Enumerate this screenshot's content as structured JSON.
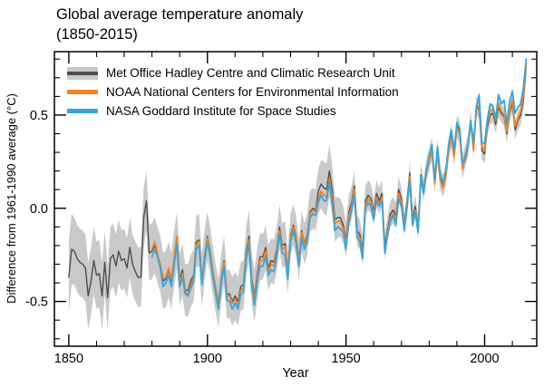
{
  "title": {
    "line1": "Global average temperature anomaly",
    "line2": "(1850-2015)"
  },
  "chart_data": {
    "type": "line",
    "title": "Global average temperature anomaly (1850-2015)",
    "xlabel": "Year",
    "ylabel": "Difference from 1961-1990 average (°C)",
    "xlim": [
      1844.8,
      2018.8
    ],
    "ylim": [
      -0.74,
      0.84
    ],
    "grid": false,
    "legend_position": "top-left-inside",
    "background_color": "#FFFFFF",
    "axis_color": "#000000",
    "text_color": "#000000",
    "x_major_ticks": [
      {
        "value": 1850,
        "label": "1850"
      },
      {
        "value": 1900,
        "label": "1900"
      },
      {
        "value": 1950,
        "label": "1950"
      },
      {
        "value": 2000,
        "label": "2000"
      }
    ],
    "x_minor_ticks": [
      1860,
      1870,
      1880,
      1890,
      1910,
      1920,
      1930,
      1940,
      1960,
      1970,
      1980,
      1990,
      2010
    ],
    "y_major_ticks": [
      {
        "value": 0.5,
        "label": "0.5"
      },
      {
        "value": 0.0,
        "label": "0.0"
      },
      {
        "value": -0.5,
        "label": "-0.5"
      }
    ],
    "y_minor_ticks": [
      0.8,
      0.7,
      0.6,
      0.4,
      0.3,
      0.2,
      0.1,
      -0.1,
      -0.2,
      -0.3,
      -0.4,
      -0.6,
      -0.7
    ],
    "series": [
      {
        "name": "met-office-hadcrut",
        "label": "Met Office Hadley Centre and Climatic Research Unit",
        "color": "#4D4D4D",
        "band_color": "#C9C9C9",
        "start_year": 1850,
        "end_year": 2015,
        "values": [
          -0.37,
          -0.22,
          -0.23,
          -0.27,
          -0.29,
          -0.3,
          -0.32,
          -0.47,
          -0.39,
          -0.28,
          -0.36,
          -0.35,
          -0.47,
          -0.29,
          -0.48,
          -0.27,
          -0.25,
          -0.31,
          -0.23,
          -0.28,
          -0.27,
          -0.32,
          -0.21,
          -0.3,
          -0.34,
          -0.37,
          -0.37,
          -0.05,
          0.04,
          -0.24,
          -0.23,
          -0.2,
          -0.25,
          -0.3,
          -0.39,
          -0.38,
          -0.33,
          -0.39,
          -0.27,
          -0.17,
          -0.38,
          -0.33,
          -0.44,
          -0.44,
          -0.39,
          -0.36,
          -0.18,
          -0.17,
          -0.39,
          -0.25,
          -0.15,
          -0.23,
          -0.34,
          -0.43,
          -0.51,
          -0.37,
          -0.28,
          -0.46,
          -0.46,
          -0.5,
          -0.47,
          -0.5,
          -0.42,
          -0.41,
          -0.23,
          -0.15,
          -0.38,
          -0.47,
          -0.35,
          -0.26,
          -0.26,
          -0.21,
          -0.32,
          -0.28,
          -0.29,
          -0.22,
          -0.1,
          -0.2,
          -0.19,
          -0.34,
          -0.14,
          -0.09,
          -0.15,
          -0.28,
          -0.12,
          -0.19,
          -0.14,
          -0.02,
          0.0,
          -0.01,
          0.09,
          0.13,
          0.11,
          0.1,
          0.2,
          0.1,
          -0.06,
          -0.05,
          -0.05,
          -0.09,
          -0.17,
          -0.02,
          0.03,
          0.12,
          -0.12,
          -0.14,
          -0.23,
          0.04,
          0.07,
          0.05,
          -0.02,
          0.08,
          0.04,
          0.08,
          -0.21,
          -0.11,
          -0.03,
          -0.01,
          -0.04,
          0.1,
          0.05,
          -0.09,
          0.03,
          0.19,
          -0.06,
          0.01,
          -0.11,
          0.18,
          0.1,
          0.21,
          0.26,
          0.32,
          0.14,
          0.31,
          0.16,
          0.12,
          0.18,
          0.32,
          0.39,
          0.29,
          0.44,
          0.41,
          0.22,
          0.28,
          0.34,
          0.47,
          0.32,
          0.55,
          0.53,
          0.31,
          0.29,
          0.44,
          0.5,
          0.51,
          0.45,
          0.54,
          0.51,
          0.49,
          0.4,
          0.51,
          0.56,
          0.42,
          0.47,
          0.5,
          0.58,
          0.76
        ],
        "uncertainty_half_width": [
          0.19,
          0.19,
          0.18,
          0.18,
          0.18,
          0.18,
          0.18,
          0.18,
          0.18,
          0.18,
          0.18,
          0.18,
          0.18,
          0.17,
          0.17,
          0.17,
          0.17,
          0.17,
          0.17,
          0.16,
          0.16,
          0.16,
          0.16,
          0.16,
          0.16,
          0.16,
          0.16,
          0.16,
          0.16,
          0.15,
          0.15,
          0.15,
          0.15,
          0.15,
          0.15,
          0.15,
          0.15,
          0.15,
          0.15,
          0.15,
          0.14,
          0.14,
          0.14,
          0.14,
          0.14,
          0.14,
          0.14,
          0.14,
          0.14,
          0.14,
          0.13,
          0.13,
          0.13,
          0.13,
          0.13,
          0.13,
          0.13,
          0.13,
          0.13,
          0.13,
          0.13,
          0.13,
          0.13,
          0.13,
          0.13,
          0.14,
          0.14,
          0.14,
          0.14,
          0.13,
          0.12,
          0.12,
          0.12,
          0.12,
          0.12,
          0.12,
          0.12,
          0.12,
          0.12,
          0.12,
          0.11,
          0.11,
          0.11,
          0.11,
          0.11,
          0.11,
          0.11,
          0.11,
          0.11,
          0.11,
          0.12,
          0.13,
          0.14,
          0.14,
          0.14,
          0.13,
          0.12,
          0.11,
          0.1,
          0.1,
          0.09,
          0.09,
          0.09,
          0.08,
          0.08,
          0.08,
          0.08,
          0.08,
          0.08,
          0.08,
          0.07,
          0.07,
          0.07,
          0.07,
          0.07,
          0.07,
          0.07,
          0.07,
          0.07,
          0.07,
          0.06,
          0.06,
          0.06,
          0.06,
          0.06,
          0.06,
          0.06,
          0.06,
          0.06,
          0.06,
          0.06,
          0.06,
          0.06,
          0.06,
          0.06,
          0.06,
          0.06,
          0.06,
          0.06,
          0.06,
          0.06,
          0.06,
          0.06,
          0.06,
          0.06,
          0.05,
          0.05,
          0.05,
          0.05,
          0.05,
          0.05,
          0.05,
          0.05,
          0.05,
          0.05,
          0.05,
          0.05,
          0.05,
          0.05,
          0.05,
          0.05,
          0.05,
          0.05,
          0.05,
          0.05,
          0.05
        ]
      },
      {
        "name": "noaa",
        "label": "NOAA National Centers for Environmental Information",
        "color": "#F5821F",
        "start_year": 1880,
        "end_year": 2015,
        "values": [
          -0.22,
          -0.18,
          -0.24,
          -0.31,
          -0.37,
          -0.37,
          -0.32,
          -0.38,
          -0.26,
          -0.15,
          -0.4,
          -0.35,
          -0.45,
          -0.46,
          -0.41,
          -0.37,
          -0.2,
          -0.18,
          -0.4,
          -0.26,
          -0.16,
          -0.24,
          -0.35,
          -0.44,
          -0.52,
          -0.38,
          -0.29,
          -0.47,
          -0.47,
          -0.51,
          -0.49,
          -0.52,
          -0.44,
          -0.43,
          -0.25,
          -0.17,
          -0.4,
          -0.49,
          -0.37,
          -0.28,
          -0.28,
          -0.23,
          -0.34,
          -0.3,
          -0.31,
          -0.24,
          -0.12,
          -0.22,
          -0.21,
          -0.36,
          -0.15,
          -0.1,
          -0.16,
          -0.29,
          -0.13,
          -0.2,
          -0.15,
          -0.03,
          -0.01,
          -0.02,
          0.05,
          0.09,
          0.07,
          0.06,
          0.16,
          0.06,
          -0.08,
          -0.07,
          -0.07,
          -0.11,
          -0.19,
          -0.04,
          0.01,
          0.1,
          -0.14,
          -0.16,
          -0.25,
          0.02,
          0.05,
          0.03,
          -0.04,
          0.06,
          0.02,
          0.06,
          -0.23,
          -0.13,
          -0.05,
          -0.03,
          -0.06,
          0.08,
          0.03,
          -0.11,
          0.01,
          0.17,
          -0.08,
          -0.01,
          -0.13,
          0.17,
          0.09,
          0.2,
          0.25,
          0.31,
          0.13,
          0.3,
          0.15,
          0.11,
          0.17,
          0.31,
          0.38,
          0.28,
          0.43,
          0.4,
          0.21,
          0.27,
          0.33,
          0.46,
          0.31,
          0.54,
          0.55,
          0.33,
          0.31,
          0.46,
          0.52,
          0.53,
          0.47,
          0.56,
          0.52,
          0.5,
          0.41,
          0.52,
          0.58,
          0.44,
          0.48,
          0.52,
          0.61,
          0.78
        ]
      },
      {
        "name": "nasa",
        "label": "NASA Goddard Institute for Space Studies",
        "color": "#36A5DC",
        "start_year": 1880,
        "end_year": 2015,
        "values": [
          -0.26,
          -0.22,
          -0.26,
          -0.32,
          -0.42,
          -0.4,
          -0.36,
          -0.42,
          -0.3,
          -0.19,
          -0.42,
          -0.37,
          -0.46,
          -0.47,
          -0.43,
          -0.39,
          -0.22,
          -0.2,
          -0.41,
          -0.28,
          -0.18,
          -0.26,
          -0.37,
          -0.46,
          -0.54,
          -0.4,
          -0.31,
          -0.49,
          -0.5,
          -0.54,
          -0.51,
          -0.54,
          -0.46,
          -0.45,
          -0.27,
          -0.19,
          -0.42,
          -0.52,
          -0.39,
          -0.31,
          -0.31,
          -0.26,
          -0.36,
          -0.33,
          -0.34,
          -0.26,
          -0.14,
          -0.24,
          -0.25,
          -0.38,
          -0.18,
          -0.12,
          -0.19,
          -0.31,
          -0.16,
          -0.22,
          -0.18,
          -0.05,
          -0.03,
          -0.04,
          0.03,
          0.07,
          0.04,
          0.04,
          0.14,
          0.02,
          -0.12,
          -0.1,
          -0.11,
          -0.13,
          -0.22,
          -0.08,
          -0.01,
          0.07,
          -0.16,
          -0.18,
          -0.27,
          0.0,
          0.03,
          0.01,
          -0.06,
          0.04,
          0.01,
          0.04,
          -0.24,
          -0.14,
          -0.07,
          -0.04,
          -0.09,
          0.05,
          0.01,
          -0.12,
          0.0,
          0.15,
          -0.09,
          -0.02,
          -0.13,
          0.17,
          0.08,
          0.19,
          0.28,
          0.34,
          0.15,
          0.33,
          0.18,
          0.14,
          0.2,
          0.34,
          0.42,
          0.31,
          0.46,
          0.43,
          0.24,
          0.26,
          0.33,
          0.47,
          0.35,
          0.53,
          0.61,
          0.35,
          0.35,
          0.48,
          0.56,
          0.55,
          0.48,
          0.61,
          0.56,
          0.58,
          0.45,
          0.57,
          0.63,
          0.51,
          0.54,
          0.56,
          0.65,
          0.8
        ]
      }
    ]
  }
}
